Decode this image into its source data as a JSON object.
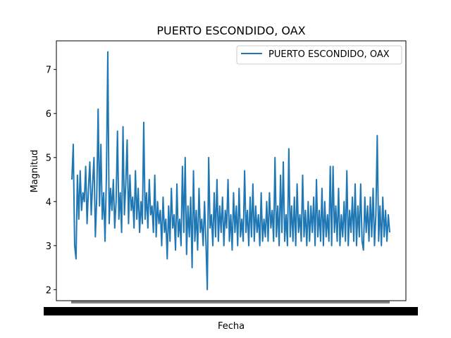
{
  "chart_data": {
    "type": "line",
    "title": "PUERTO ESCONDIDO, OAX",
    "xlabel": "Fecha",
    "ylabel": "Magnitud",
    "ylim": [
      1.75,
      7.65
    ],
    "y_ticks": [
      2,
      3,
      4,
      5,
      6,
      7
    ],
    "grid": false,
    "legend_position": "top-right",
    "color": "#1f77b4",
    "x_ticks_overlapping": true,
    "series": [
      {
        "name": "PUERTO ESCONDIDO, OAX",
        "values": [
          4.5,
          5.3,
          3.0,
          2.7,
          4.6,
          3.6,
          4.7,
          3.8,
          4.2,
          4.0,
          4.8,
          3.5,
          4.3,
          4.9,
          3.7,
          4.4,
          5.0,
          3.2,
          4.1,
          6.1,
          3.9,
          5.3,
          3.6,
          4.2,
          3.1,
          4.6,
          7.4,
          3.5,
          4.3,
          3.8,
          4.5,
          3.4,
          4.0,
          5.6,
          3.6,
          4.2,
          3.3,
          5.7,
          3.7,
          4.4,
          5.4,
          3.5,
          4.6,
          3.8,
          4.1,
          3.4,
          4.7,
          3.6,
          4.3,
          3.3,
          4.0,
          3.5,
          5.8,
          3.6,
          4.2,
          3.4,
          4.5,
          3.7,
          3.9,
          3.3,
          4.6,
          3.2,
          4.0,
          3.5,
          3.8,
          3.0,
          4.1,
          3.3,
          3.6,
          2.7,
          3.9,
          3.1,
          4.3,
          3.4,
          3.7,
          2.9,
          4.4,
          3.2,
          3.6,
          3.0,
          4.8,
          3.3,
          5.0,
          2.8,
          3.9,
          3.2,
          4.1,
          2.5,
          4.7,
          3.1,
          3.8,
          2.9,
          4.3,
          3.3,
          3.6,
          3.0,
          4.0,
          3.1,
          2.0,
          5.0,
          3.4,
          3.7,
          3.0,
          4.2,
          3.2,
          4.5,
          3.1,
          3.9,
          3.3,
          4.1,
          3.0,
          3.8,
          3.4,
          4.5,
          3.1,
          3.7,
          2.9,
          4.2,
          3.3,
          3.9,
          3.0,
          4.3,
          3.2,
          3.6,
          3.1,
          4.7,
          3.3,
          3.8,
          3.0,
          4.1,
          3.2,
          4.4,
          3.1,
          3.9,
          3.3,
          3.7,
          3.0,
          4.2,
          3.1,
          3.6,
          3.2,
          4.0,
          3.1,
          4.2,
          3.4,
          3.8,
          3.1,
          5.0,
          3.2,
          3.9,
          3.0,
          4.6,
          3.3,
          4.9,
          3.1,
          3.7,
          3.0,
          5.2,
          3.2,
          3.9,
          3.1,
          4.1,
          3.0,
          4.4,
          3.3,
          3.7,
          3.1,
          4.6,
          3.2,
          3.8,
          3.0,
          4.0,
          3.1,
          3.9,
          3.3,
          4.1,
          3.0,
          4.5,
          3.2,
          3.8,
          3.1,
          4.3,
          3.0,
          4.0,
          3.2,
          3.7,
          3.1,
          4.8,
          3.0,
          4.8,
          3.3,
          3.9,
          3.1,
          4.3,
          3.0,
          3.7,
          3.2,
          4.0,
          3.1,
          4.7,
          3.0,
          3.8,
          3.3,
          4.1,
          3.1,
          4.4,
          3.0,
          3.9,
          3.2,
          4.4,
          3.1,
          2.9,
          4.1,
          3.3,
          3.9,
          3.1,
          4.1,
          3.2,
          4.3,
          3.0,
          3.7,
          5.5,
          3.1,
          3.9,
          3.0,
          4.1,
          3.2,
          3.8,
          3.1,
          3.7,
          3.3
        ]
      }
    ]
  }
}
